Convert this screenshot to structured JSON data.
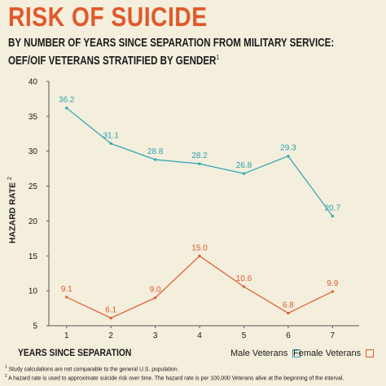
{
  "header": {
    "title": "RISK OF SUICIDE",
    "subtitle_line1": "BY NUMBER OF YEARS SINCE SEPARATION FROM MILITARY SERVICE:",
    "subtitle_line2": "OEF/OIF VETERANS STRATIFIED BY GENDER",
    "subtitle_mark": "1"
  },
  "footnotes": {
    "note1_mark": "1",
    "note1": "Study calculations are not comparable to the general U.S. population.",
    "note2_mark": "2",
    "note2": "A hazard rate is used to approximate suicide risk over time. The hazard rate is per 100,000 Veterans alive at the beginning of the interval."
  },
  "colors": {
    "background": "#f4eedd",
    "title": "#e05a2b",
    "male": "#2aa3b1",
    "female": "#e05a2b",
    "axis": "#555555"
  },
  "chart_data": {
    "type": "line",
    "title": "RISK OF SUICIDE",
    "xlabel": "YEARS SINCE SEPARATION",
    "ylabel": "HAZARD RATE",
    "ylabel_mark": "2",
    "x": [
      1,
      2,
      3,
      4,
      5,
      6,
      7
    ],
    "x_tick_labels": [
      "1",
      "2",
      "3",
      "4",
      "5",
      "6",
      "7"
    ],
    "y_ticks": [
      5,
      10,
      15,
      20,
      25,
      30,
      35,
      40
    ],
    "y_tick_labels": [
      "5",
      "10",
      "15",
      "20",
      "25",
      "30",
      "35",
      "40"
    ],
    "ylim": [
      5,
      40
    ],
    "grid": false,
    "legend_position": "bottom-right",
    "series": [
      {
        "name": "Male Veterans",
        "color": "#2aa3b1",
        "values": [
          36.2,
          31.1,
          28.8,
          28.2,
          26.8,
          29.3,
          20.7
        ],
        "value_labels": [
          "36.2",
          "31.1",
          "28.8",
          "28.2",
          "26.8",
          "29.3",
          "20.7"
        ]
      },
      {
        "name": "Female Veterans",
        "color": "#e05a2b",
        "values": [
          9.1,
          6.1,
          9.0,
          15.0,
          10.6,
          6.8,
          9.9
        ],
        "value_labels": [
          "9.1",
          "6.1",
          "9.0",
          "15.0",
          "10.6",
          "6.8",
          "9.9"
        ]
      }
    ]
  }
}
